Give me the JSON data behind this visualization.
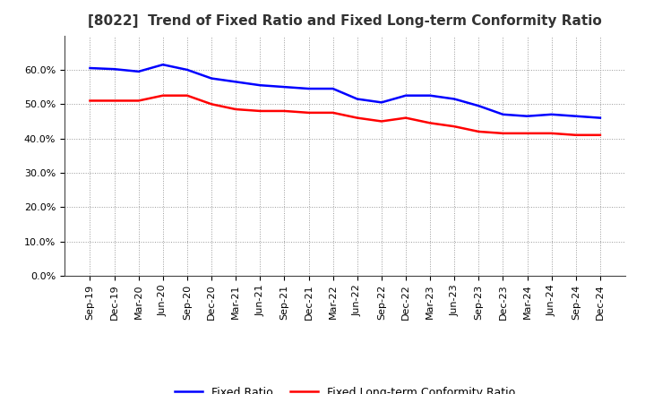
{
  "title": "[8022]  Trend of Fixed Ratio and Fixed Long-term Conformity Ratio",
  "x_labels": [
    "Sep-19",
    "Dec-19",
    "Mar-20",
    "Jun-20",
    "Sep-20",
    "Dec-20",
    "Mar-21",
    "Jun-21",
    "Sep-21",
    "Dec-21",
    "Mar-22",
    "Jun-22",
    "Sep-22",
    "Dec-22",
    "Mar-23",
    "Jun-23",
    "Sep-23",
    "Dec-23",
    "Mar-24",
    "Jun-24",
    "Sep-24",
    "Dec-24"
  ],
  "fixed_ratio": [
    60.5,
    60.2,
    59.5,
    61.5,
    60.0,
    57.5,
    56.5,
    55.5,
    55.0,
    54.5,
    54.5,
    51.5,
    50.5,
    52.5,
    52.5,
    51.5,
    49.5,
    47.0,
    46.5,
    47.0,
    46.5,
    46.0
  ],
  "fixed_lt_ratio": [
    51.0,
    51.0,
    51.0,
    52.5,
    52.5,
    50.0,
    48.5,
    48.0,
    48.0,
    47.5,
    47.5,
    46.0,
    45.0,
    46.0,
    44.5,
    43.5,
    42.0,
    41.5,
    41.5,
    41.5,
    41.0,
    41.0
  ],
  "ylim": [
    0,
    70
  ],
  "yticks": [
    0,
    10,
    20,
    30,
    40,
    50,
    60
  ],
  "line_color_fixed": "#0000FF",
  "line_color_lt": "#FF0000",
  "background_color": "#FFFFFF",
  "plot_bg_color": "#FFFFFF",
  "grid_color": "#999999",
  "legend_fixed": "Fixed Ratio",
  "legend_lt": "Fixed Long-term Conformity Ratio",
  "title_fontsize": 11,
  "tick_fontsize": 8,
  "legend_fontsize": 9
}
